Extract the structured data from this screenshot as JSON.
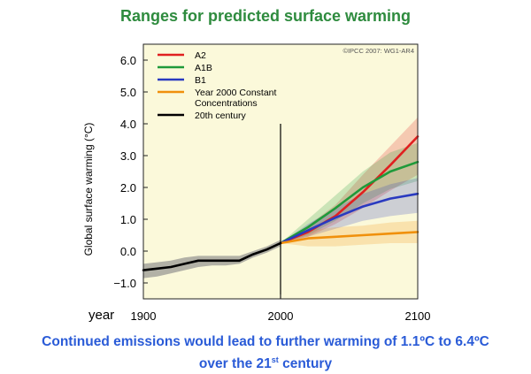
{
  "slide": {
    "title": "Ranges for predicted surface warming",
    "year_label": "year",
    "caption_line1": "Continued emissions would lead to further warming of 1.1ºC to 6.4ºC",
    "caption_line2_pre": "over the 21",
    "caption_line2_sup": "st",
    "caption_line2_post": " century"
  },
  "colors": {
    "title": "#2e8b3e",
    "caption": "#2a5bd7",
    "plot_background": "#fbf9da",
    "A2": "#e02020",
    "A1B": "#1f9a3a",
    "B1": "#2a3ac0",
    "constant": "#f0900c",
    "century20": "#000000"
  },
  "chart_data": {
    "type": "line",
    "title": "",
    "ylabel": "Global surface warming (°C)",
    "xlabel": "",
    "copyright": "©IPCC 2007: WG1-AR4",
    "xlim": [
      1900,
      2100
    ],
    "ylim": [
      -1.5,
      6.5
    ],
    "yticks": [
      -1.0,
      0.0,
      1.0,
      2.0,
      3.0,
      4.0,
      5.0,
      6.0
    ],
    "ytick_labels": [
      "−1.0",
      "0.0",
      "1.0",
      "2.0",
      "3.0",
      "4.0",
      "5.0",
      "6.0"
    ],
    "xticks": [
      1900,
      2000,
      2100
    ],
    "xtick_labels": [
      "1900",
      "2000",
      "2100"
    ],
    "divider_year": 2000,
    "legend_position": "top-left",
    "series": [
      {
        "name": "A2",
        "color_key": "A2",
        "x": [
          2000,
          2020,
          2040,
          2060,
          2080,
          2100
        ],
        "y": [
          0.25,
          0.6,
          1.1,
          1.85,
          2.7,
          3.6
        ],
        "lower": [
          0.25,
          0.45,
          0.85,
          1.35,
          1.9,
          2.4
        ],
        "upper": [
          0.25,
          0.8,
          1.45,
          2.4,
          3.3,
          4.2
        ]
      },
      {
        "name": "A1B",
        "color_key": "A1B",
        "x": [
          2000,
          2020,
          2040,
          2060,
          2080,
          2100
        ],
        "y": [
          0.25,
          0.75,
          1.35,
          2.0,
          2.5,
          2.8
        ],
        "lower": [
          0.25,
          0.5,
          0.95,
          1.5,
          1.95,
          2.2
        ],
        "upper": [
          0.25,
          1.0,
          1.75,
          2.5,
          3.1,
          3.4
        ]
      },
      {
        "name": "B1",
        "color_key": "B1",
        "x": [
          2000,
          2020,
          2040,
          2060,
          2080,
          2100
        ],
        "y": [
          0.25,
          0.65,
          1.05,
          1.4,
          1.65,
          1.8
        ],
        "lower": [
          0.25,
          0.45,
          0.7,
          0.95,
          1.1,
          1.2
        ],
        "upper": [
          0.25,
          0.85,
          1.35,
          1.8,
          2.1,
          2.3
        ]
      },
      {
        "name": "Year 2000 Constant Concentrations",
        "color_key": "constant",
        "x": [
          2000,
          2020,
          2040,
          2060,
          2080,
          2100
        ],
        "y": [
          0.25,
          0.4,
          0.45,
          0.5,
          0.55,
          0.6
        ],
        "lower": [
          0.25,
          0.15,
          0.15,
          0.2,
          0.25,
          0.25
        ],
        "upper": [
          0.25,
          0.65,
          0.75,
          0.8,
          0.9,
          0.95
        ]
      },
      {
        "name": "20th century",
        "color_key": "century20",
        "x": [
          1900,
          1910,
          1920,
          1930,
          1940,
          1950,
          1960,
          1970,
          1980,
          1990,
          2000
        ],
        "y": [
          -0.6,
          -0.55,
          -0.5,
          -0.4,
          -0.3,
          -0.3,
          -0.3,
          -0.3,
          -0.1,
          0.05,
          0.25
        ],
        "lower": [
          -0.85,
          -0.8,
          -0.7,
          -0.6,
          -0.5,
          -0.45,
          -0.45,
          -0.4,
          -0.2,
          -0.05,
          0.15
        ],
        "upper": [
          -0.4,
          -0.35,
          -0.3,
          -0.2,
          -0.15,
          -0.15,
          -0.15,
          -0.15,
          0.0,
          0.15,
          0.35
        ]
      }
    ],
    "legend": [
      {
        "label": "A2",
        "color_key": "A2"
      },
      {
        "label": "A1B",
        "color_key": "A1B"
      },
      {
        "label": "B1",
        "color_key": "B1"
      },
      {
        "label": "Year 2000 Constant",
        "label2": "Concentrations",
        "color_key": "constant"
      },
      {
        "label": "20th century",
        "color_key": "century20"
      }
    ]
  }
}
